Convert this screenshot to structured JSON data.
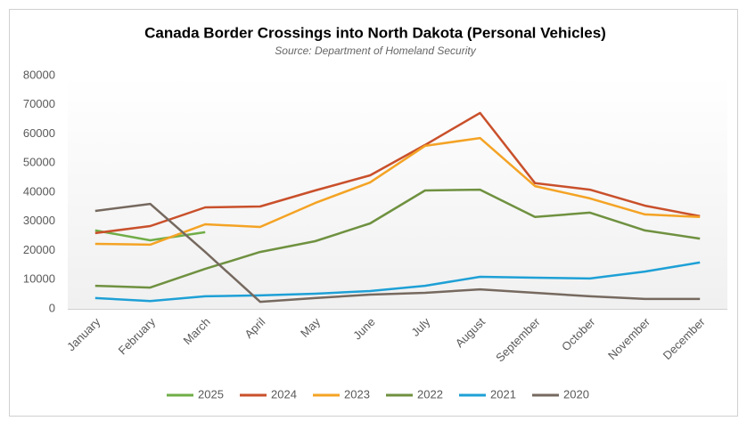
{
  "chart_data": {
    "type": "line",
    "title": "Canada Border Crossings into North Dakota (Personal Vehicles)",
    "subtitle": "Source: Department of Homeland Security",
    "categories": [
      "January",
      "February",
      "March",
      "April",
      "May",
      "June",
      "July",
      "August",
      "September",
      "October",
      "November",
      "December"
    ],
    "ylim": [
      0,
      80000
    ],
    "yticks": [
      0,
      10000,
      20000,
      30000,
      40000,
      50000,
      60000,
      70000,
      80000
    ],
    "grid": false,
    "legend": "bottom",
    "series": [
      {
        "name": "2025",
        "color": "#70ad47",
        "values": [
          26900,
          23500,
          26300,
          null,
          null,
          null,
          null,
          null,
          null,
          null,
          null,
          null
        ]
      },
      {
        "name": "2024",
        "color": "#c9502b",
        "values": [
          26000,
          28400,
          34800,
          35100,
          40600,
          45800,
          56200,
          67200,
          43100,
          40900,
          35400,
          31800
        ]
      },
      {
        "name": "2023",
        "color": "#f4a324",
        "values": [
          22300,
          22000,
          29000,
          28100,
          36300,
          43400,
          55900,
          58600,
          42100,
          37900,
          32400,
          31500
        ]
      },
      {
        "name": "2022",
        "color": "#6f9140",
        "values": [
          7900,
          7300,
          13700,
          19500,
          23200,
          29300,
          40600,
          40900,
          31500,
          33000,
          26900,
          24100
        ]
      },
      {
        "name": "2021",
        "color": "#1ea0d6",
        "values": [
          3700,
          2700,
          4300,
          4600,
          5200,
          6100,
          7900,
          11000,
          10700,
          10400,
          12800,
          15900
        ]
      },
      {
        "name": "2020",
        "color": "#76695f",
        "values": [
          33600,
          36000,
          19500,
          2400,
          3700,
          4900,
          5500,
          6700,
          5500,
          4300,
          3400,
          3400
        ]
      }
    ]
  }
}
